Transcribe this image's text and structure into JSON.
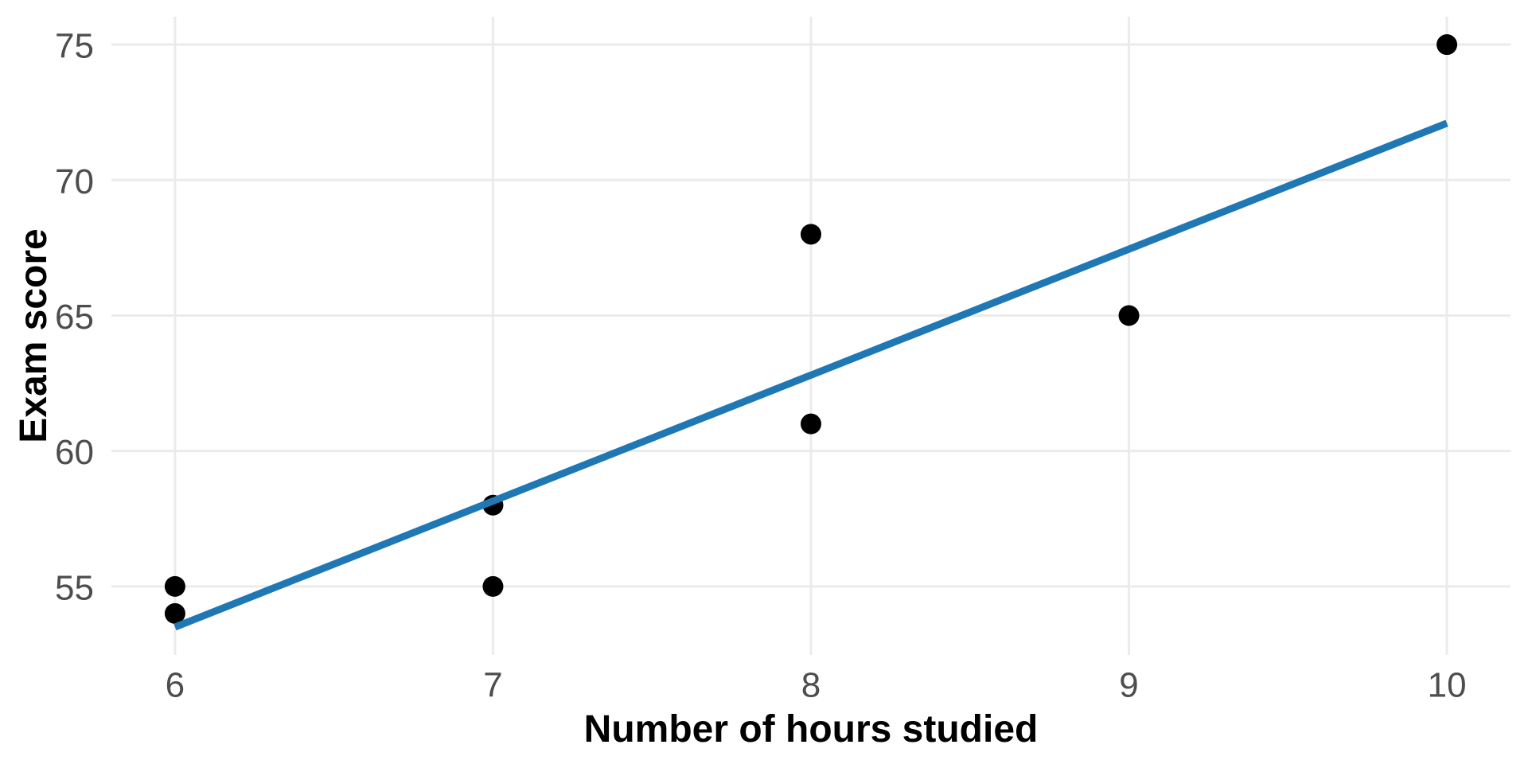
{
  "chart_data": {
    "type": "scatter",
    "title": "",
    "xlabel": "Number of hours studied",
    "ylabel": "Exam score",
    "points": [
      {
        "x": 6,
        "y": 55
      },
      {
        "x": 6,
        "y": 54
      },
      {
        "x": 7,
        "y": 58
      },
      {
        "x": 7,
        "y": 55
      },
      {
        "x": 8,
        "y": 68
      },
      {
        "x": 8,
        "y": 61
      },
      {
        "x": 9,
        "y": 65
      },
      {
        "x": 10,
        "y": 75
      }
    ],
    "trendline": {
      "type": "linear-fit",
      "x1": 6,
      "y1": 53.5,
      "x2": 10,
      "y2": 72.1
    },
    "x_ticks": [
      "6",
      "7",
      "8",
      "9",
      "10"
    ],
    "x_tick_values": [
      6,
      7,
      8,
      9,
      10
    ],
    "y_ticks": [
      "55",
      "60",
      "65",
      "70",
      "75"
    ],
    "y_tick_values": [
      55,
      60,
      65,
      70,
      75
    ],
    "xlim": [
      5.8,
      10.2
    ],
    "ylim": [
      52.47,
      76.03
    ],
    "grid": "major-only",
    "legend": "none",
    "colors": {
      "point": "#000000",
      "trendline": "#1f77b4",
      "grid": "#ebebeb",
      "tick_label": "#4d4d4d",
      "axis_title": "#000000",
      "background": "#ffffff"
    },
    "style": {
      "point_radius": 13,
      "trendline_width": 9,
      "gridline_width": 3
    }
  }
}
